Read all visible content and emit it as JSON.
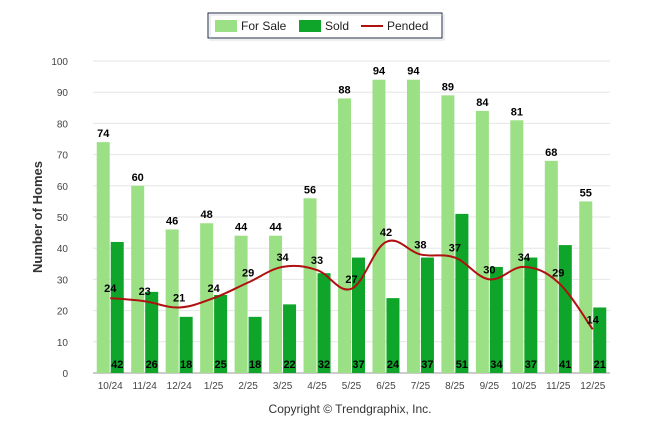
{
  "chart_data": {
    "type": "bar",
    "ylabel": "Number of Homes",
    "ylim": [
      0,
      100
    ],
    "yticks": [
      0,
      10,
      20,
      30,
      40,
      50,
      60,
      70,
      80,
      90,
      100
    ],
    "categories": [
      "10/24",
      "11/24",
      "12/24",
      "1/25",
      "2/25",
      "3/25",
      "4/25",
      "5/25",
      "6/25",
      "7/25",
      "8/25",
      "9/25",
      "10/25",
      "11/25",
      "12/25"
    ],
    "series": [
      {
        "name": "For Sale",
        "kind": "bar",
        "color": "#9be085",
        "values": [
          74,
          60,
          46,
          48,
          44,
          44,
          56,
          88,
          94,
          94,
          89,
          84,
          81,
          68,
          55
        ]
      },
      {
        "name": "Sold",
        "kind": "bar",
        "color": "#0fa52a",
        "values": [
          42,
          26,
          18,
          25,
          18,
          22,
          32,
          37,
          24,
          37,
          51,
          34,
          37,
          41,
          21
        ]
      },
      {
        "name": "Pended",
        "kind": "line",
        "color": "#b01010",
        "values": [
          24,
          23,
          21,
          24,
          29,
          34,
          33,
          27,
          42,
          38,
          37,
          30,
          34,
          29,
          14
        ]
      }
    ],
    "legend_position": "top-center",
    "copyright": "Copyright © Trendgraphix, Inc."
  }
}
